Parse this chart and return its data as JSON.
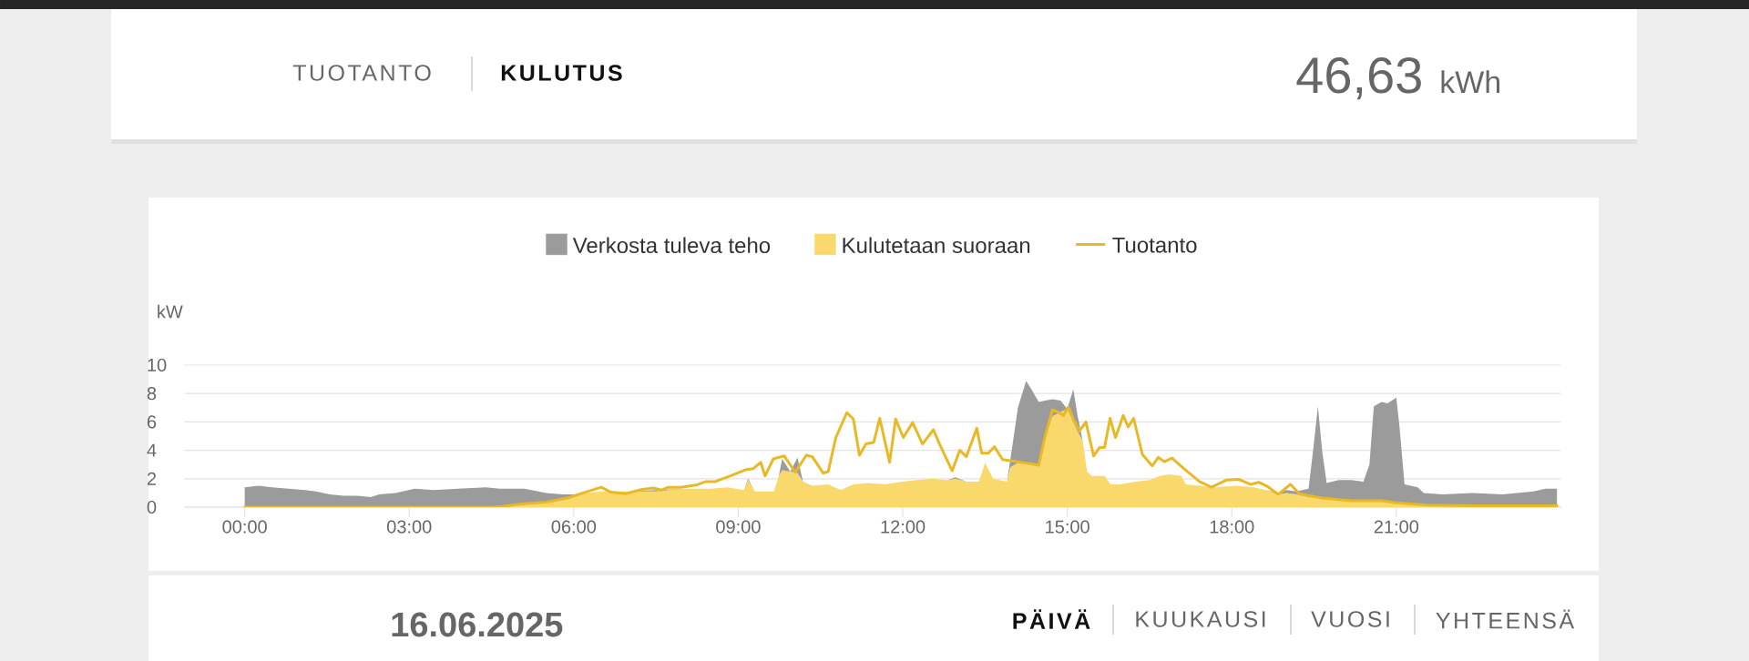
{
  "chart_data": {
    "type": "area",
    "title": "KULUTUS",
    "ylabel": "kW",
    "annotations": [
      "TUOTANTO",
      "46,63",
      "kWh",
      "16.06.2025",
      "PÄIVÄ",
      "KUUKAUSI",
      "VUOSI",
      "YHTEENSÄ"
    ],
    "stacked": true,
    "x": [
      0,
      0.25,
      0.5,
      0.8,
      1.1,
      1.3,
      1.55,
      1.8,
      2.05,
      2.3,
      2.45,
      2.75,
      3.1,
      3.45,
      3.9,
      4.4,
      4.65,
      5.1,
      5.5,
      5.8,
      6.0,
      6.2,
      6.5,
      7.0,
      7.5,
      8.0,
      8.5,
      8.8,
      9.1,
      9.18,
      9.3,
      9.65,
      9.74,
      9.8,
      9.95,
      10.08,
      10.18,
      10.35,
      10.64,
      10.87,
      11.1,
      11.38,
      11.67,
      12.0,
      12.25,
      12.53,
      12.81,
      12.96,
      13.16,
      13.39,
      13.5,
      13.65,
      13.9,
      13.96,
      14.1,
      14.25,
      14.36,
      14.48,
      14.59,
      14.73,
      14.88,
      15.0,
      15.11,
      15.19,
      15.28,
      15.36,
      15.45,
      15.68,
      15.79,
      15.96,
      16.25,
      16.5,
      16.69,
      16.85,
      17.08,
      17.16,
      17.41,
      17.68,
      18.07,
      18.4,
      18.63,
      18.85,
      19.0,
      19.18,
      19.4,
      19.48,
      19.57,
      19.65,
      19.73,
      19.95,
      20.18,
      20.4,
      20.51,
      20.59,
      20.73,
      20.84,
      21.0,
      21.06,
      21.15,
      21.39,
      21.5,
      21.84,
      22.39,
      22.94,
      23.5,
      23.72,
      23.93
    ],
    "series": [
      {
        "name": "Kulutetaan suoraan",
        "color": "#f9d86c",
        "values": [
          0,
          0,
          0,
          0,
          0,
          0,
          0,
          0,
          0,
          0,
          0,
          0,
          0,
          0,
          0,
          0,
          0.1,
          0.2,
          0.3,
          0.5,
          0.7,
          1.0,
          1.1,
          1.1,
          1.1,
          1.3,
          1.3,
          1.4,
          1.2,
          1.9,
          1.1,
          1.1,
          2.2,
          2.6,
          2.5,
          2.4,
          1.8,
          1.5,
          1.6,
          1.2,
          1.6,
          1.7,
          1.6,
          1.8,
          1.9,
          2.0,
          1.9,
          2.0,
          1.8,
          1.8,
          3.1,
          2.0,
          1.8,
          2.8,
          3.1,
          3.1,
          3.1,
          3.0,
          4.9,
          6.4,
          6.7,
          6.9,
          6.0,
          5.3,
          4.7,
          2.5,
          2.2,
          2.2,
          1.6,
          1.6,
          1.8,
          1.9,
          2.2,
          2.3,
          2.2,
          1.6,
          1.5,
          1.4,
          1.5,
          1.4,
          1.2,
          0.9,
          1.0,
          0.9,
          0.7,
          0.7,
          0.7,
          0.6,
          0.6,
          0.5,
          0.5,
          0.5,
          0.5,
          0.4,
          0.4,
          0.4,
          0.3,
          0.3,
          0.3,
          0.2,
          0.2,
          0.1,
          0.1,
          0.1,
          0.1,
          0.1,
          0.1
        ]
      },
      {
        "name": "Verkosta tuleva teho",
        "color": "#9b9b9b",
        "values": [
          1.4,
          1.5,
          1.4,
          1.3,
          1.2,
          1.1,
          0.9,
          0.8,
          0.8,
          0.7,
          0.9,
          1.0,
          1.3,
          1.2,
          1.3,
          1.4,
          1.2,
          1.1,
          0.7,
          0.4,
          0.2,
          0,
          0,
          0,
          0.1,
          0,
          0,
          0,
          0,
          0.1,
          0,
          0,
          0,
          0.8,
          0,
          1.1,
          0,
          0,
          0,
          0,
          0,
          0,
          0,
          0,
          0,
          0,
          0,
          0.1,
          0,
          0,
          0,
          0,
          0,
          0.5,
          3.9,
          5.8,
          5.1,
          4.4,
          2.6,
          1.2,
          0.8,
          0,
          2.3,
          1.1,
          0,
          0,
          0,
          0,
          0,
          0,
          0,
          0,
          0,
          0,
          0,
          0,
          0,
          0,
          0,
          0,
          0,
          0.1,
          0.2,
          0.2,
          0.6,
          3.2,
          6.4,
          3.3,
          1.1,
          1.4,
          1.4,
          1.3,
          2.5,
          6.7,
          7.0,
          6.9,
          7.4,
          5.3,
          1.3,
          1.2,
          0.8,
          0.8,
          0.9,
          0.8,
          1.0,
          1.2,
          1.2
        ]
      },
      {
        "name": "Tuotanto",
        "type": "line",
        "color": "#e9b825",
        "x": [
          0,
          4.6,
          5.0,
          5.5,
          5.9,
          6.17,
          6.5,
          6.68,
          6.95,
          7.25,
          7.45,
          7.6,
          7.72,
          7.95,
          8.23,
          8.41,
          8.58,
          8.86,
          9.15,
          9.27,
          9.41,
          9.49,
          9.64,
          9.84,
          10.04,
          10.24,
          10.35,
          10.55,
          10.64,
          10.78,
          10.98,
          11.1,
          11.21,
          11.33,
          11.47,
          11.58,
          11.76,
          11.87,
          12.01,
          12.18,
          12.36,
          12.56,
          12.67,
          12.9,
          13.04,
          13.16,
          13.35,
          13.44,
          13.56,
          13.67,
          13.82,
          14.07,
          14.25,
          14.48,
          14.59,
          14.73,
          14.85,
          14.93,
          15.02,
          15.11,
          15.22,
          15.34,
          15.48,
          15.59,
          15.68,
          15.78,
          15.88,
          16.02,
          16.11,
          16.21,
          16.37,
          16.55,
          16.66,
          16.77,
          16.91,
          17.13,
          17.41,
          17.63,
          17.9,
          18.13,
          18.35,
          18.49,
          18.63,
          18.85,
          19.07,
          19.23,
          19.62,
          20.18,
          20.73,
          21.0,
          21.56,
          22.39,
          23.93
        ],
        "values": [
          0,
          0,
          0.2,
          0.35,
          0.65,
          1.0,
          1.4,
          1.05,
          0.95,
          1.25,
          1.35,
          1.2,
          1.4,
          1.4,
          1.55,
          1.8,
          1.8,
          2.2,
          2.65,
          2.7,
          3.15,
          2.2,
          3.4,
          3.6,
          2.45,
          3.65,
          3.55,
          2.4,
          2.5,
          4.9,
          6.65,
          6.2,
          3.65,
          4.45,
          4.55,
          6.25,
          3.15,
          6.2,
          4.9,
          5.95,
          4.45,
          5.45,
          4.45,
          2.55,
          4.0,
          3.55,
          5.55,
          3.8,
          3.8,
          4.25,
          3.35,
          3.2,
          3.1,
          2.95,
          4.9,
          6.85,
          6.65,
          6.45,
          7.05,
          6.2,
          5.35,
          6.0,
          3.6,
          4.2,
          4.2,
          6.25,
          4.9,
          6.45,
          5.65,
          6.25,
          3.7,
          2.9,
          3.5,
          3.2,
          3.45,
          2.7,
          1.8,
          1.4,
          1.9,
          1.95,
          1.6,
          1.75,
          1.5,
          0.9,
          1.6,
          0.95,
          0.65,
          0.45,
          0.45,
          0.3,
          0.15,
          0.1,
          0.1
        ]
      }
    ],
    "xlim": [
      -1.1,
      24
    ],
    "xticks": [
      {
        "value": 0,
        "label": "00:00"
      },
      {
        "value": 3,
        "label": "03:00"
      },
      {
        "value": 6,
        "label": "06:00"
      },
      {
        "value": 9,
        "label": "09:00"
      },
      {
        "value": 12,
        "label": "12:00"
      },
      {
        "value": 15,
        "label": "15:00"
      },
      {
        "value": 18,
        "label": "18:00"
      },
      {
        "value": 21,
        "label": "21:00"
      }
    ],
    "ylim": [
      0,
      10
    ],
    "yticks": [
      0,
      2,
      4,
      6,
      8,
      10
    ],
    "grid": "y",
    "legend": "top"
  }
}
